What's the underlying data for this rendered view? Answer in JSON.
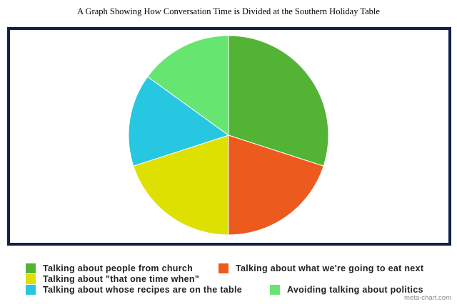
{
  "chart_data": {
    "type": "pie",
    "title": "A Graph Showing How Conversation Time is Divided at the Southern Holiday Table",
    "slices": [
      {
        "label": "Talking about people from church",
        "value": 30,
        "color": "#52b335"
      },
      {
        "label": "Talking about what we're going to eat next",
        "value": 20,
        "color": "#ec5a1e"
      },
      {
        "label": "Talking about \"that one time when\"",
        "value": 20,
        "color": "#dde000"
      },
      {
        "label": "Talking about whose recipes are on the table",
        "value": 15,
        "color": "#27c7e1"
      },
      {
        "label": "Avoiding talking about politics",
        "value": 15,
        "color": "#66e571"
      }
    ],
    "legend_position": "bottom"
  },
  "credit": "meta-chart.com"
}
